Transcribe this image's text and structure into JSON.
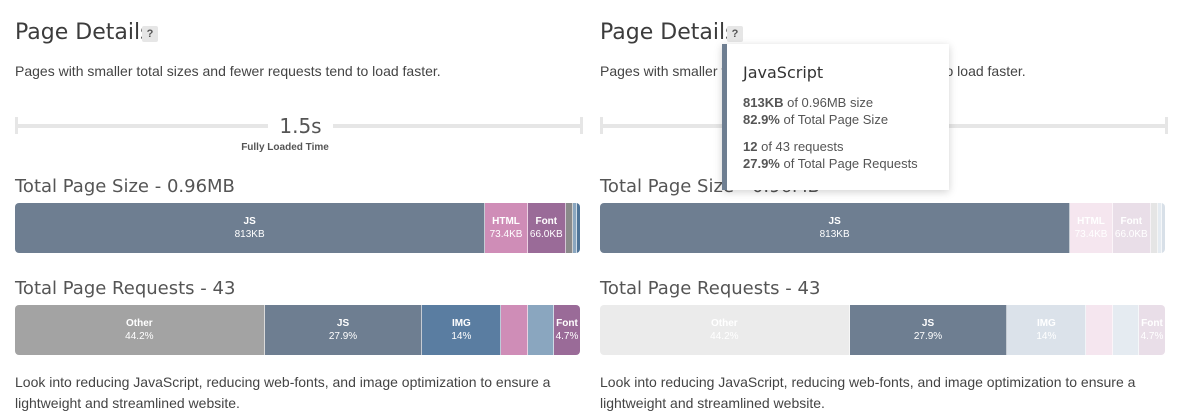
{
  "title": "Page Details",
  "help_icon": "?",
  "description": "Pages with smaller total sizes and fewer requests tend to load faster.",
  "timeline": {
    "value": "1.5s",
    "label": "Fully Loaded Time"
  },
  "page_size": {
    "title": "Total Page Size - 0.96MB",
    "segments": [
      {
        "label": "JS",
        "value": "813KB",
        "color": "#6e7e91",
        "share": 82.9
      },
      {
        "label": "HTML",
        "value": "73.4KB",
        "color": "#cf8db7",
        "share": 7.5
      },
      {
        "label": "Font",
        "value": "66.0KB",
        "color": "#9a6b98",
        "share": 6.7
      },
      {
        "label": "",
        "value": "",
        "color": "#8a8a8a",
        "share": 1.3
      },
      {
        "label": "",
        "value": "",
        "color": "#8aa6bf",
        "share": 0.6
      },
      {
        "label": "",
        "value": "",
        "color": "#4f7497",
        "share": 0.6
      }
    ]
  },
  "page_requests": {
    "title": "Total Page Requests - 43",
    "segments": [
      {
        "label": "Other",
        "value": "44.2%",
        "color": "#a3a3a3",
        "share": 44.2
      },
      {
        "label": "JS",
        "value": "27.9%",
        "color": "#6e7e91",
        "share": 27.9
      },
      {
        "label": "IMG",
        "value": "14%",
        "color": "#5a7da1",
        "share": 14
      },
      {
        "label": "",
        "value": "",
        "color": "#cf8db7",
        "share": 4.7
      },
      {
        "label": "",
        "value": "",
        "color": "#8aa6bf",
        "share": 4.6
      },
      {
        "label": "Font",
        "value": "4.7%",
        "color": "#9a6b98",
        "share": 4.6
      }
    ]
  },
  "footer": "Look into reducing JavaScript, reducing web-fonts, and image optimization to ensure a lightweight and streamlined website.",
  "tooltip": {
    "title": "JavaScript",
    "size_value": "813KB",
    "size_text": "of 0.96MB size",
    "size_pct": "82.9%",
    "size_pct_text": "of Total Page Size",
    "req_value": "12",
    "req_text": "of 43 requests",
    "req_pct": "27.9%",
    "req_pct_text": "of Total Page Requests"
  }
}
